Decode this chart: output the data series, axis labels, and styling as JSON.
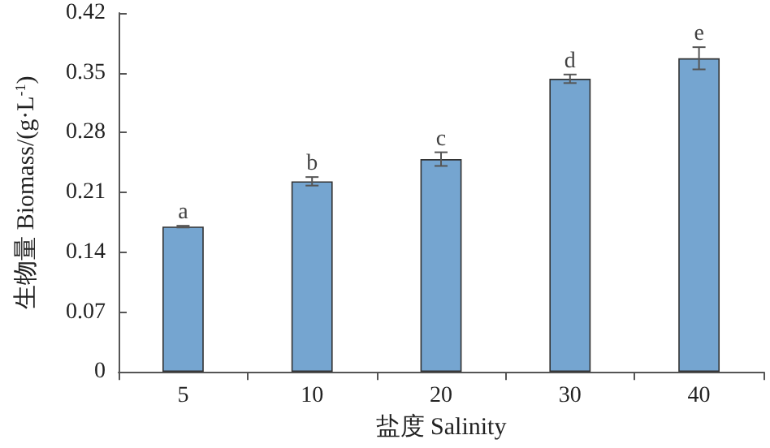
{
  "chart_data": {
    "type": "bar",
    "xlabel": "盐度 Salinity",
    "ylabel": "生物量 Biomass/(g·L$^{-1}$)",
    "categories": [
      "5",
      "10",
      "20",
      "30",
      "40"
    ],
    "values": [
      0.17,
      0.223,
      0.249,
      0.343,
      0.367
    ],
    "errors": [
      0.001,
      0.005,
      0.008,
      0.005,
      0.013
    ],
    "color": "#75a5d0",
    "ylim": [
      0,
      0.42
    ],
    "yticks": [
      0,
      0.07,
      0.14,
      0.21,
      0.28,
      0.35,
      0.42
    ],
    "annotations": [
      {
        "text": "a",
        "x": "5",
        "y": 0.171
      },
      {
        "text": "b",
        "x": "10",
        "y": 0.228
      },
      {
        "text": "c",
        "x": "20",
        "y": 0.257
      },
      {
        "text": "d",
        "x": "30",
        "y": 0.348
      },
      {
        "text": "e",
        "x": "40",
        "y": 0.38
      }
    ],
    "grid": false
  }
}
